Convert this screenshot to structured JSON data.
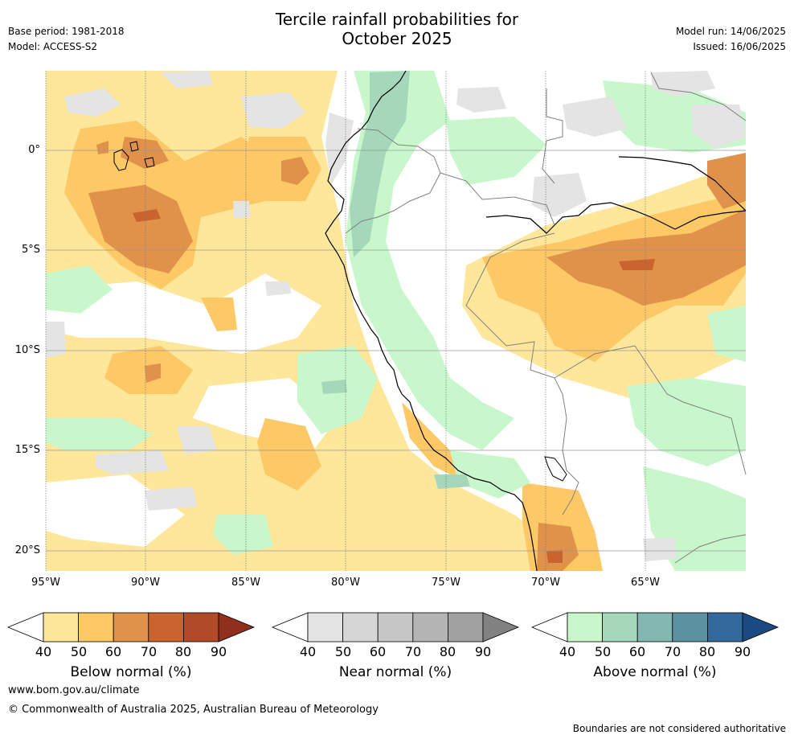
{
  "title_line1": "Tercile rainfall probabilities for",
  "title_line2": "October 2025",
  "meta": {
    "base_period": "Base period: 1981-2018",
    "model": "Model: ACCESS-S2",
    "model_run": "Model run: 14/06/2025",
    "issued": "Issued: 16/06/2025"
  },
  "axes": {
    "x_ticks": [
      "95°W",
      "90°W",
      "85°W",
      "80°W",
      "75°W",
      "70°W",
      "65°W"
    ],
    "y_ticks": [
      "0°",
      "5°S",
      "10°S",
      "15°S",
      "20°S"
    ]
  },
  "colorbars": [
    {
      "title": "Below normal (%)",
      "ticks": [
        "40",
        "50",
        "60",
        "70",
        "80",
        "90"
      ],
      "colors": [
        "#ffffff",
        "#fee79b",
        "#fdc866",
        "#e0914a",
        "#c9642e",
        "#b04a28",
        "#8f2f1c"
      ]
    },
    {
      "title": "Near normal (%)",
      "ticks": [
        "40",
        "50",
        "60",
        "70",
        "80",
        "90"
      ],
      "colors": [
        "#ffffff",
        "#e4e4e4",
        "#d6d6d6",
        "#c6c6c6",
        "#b4b4b4",
        "#a1a1a1",
        "#828282"
      ]
    },
    {
      "title": "Above normal (%)",
      "ticks": [
        "40",
        "50",
        "60",
        "70",
        "80",
        "90"
      ],
      "colors": [
        "#ffffff",
        "#c8f7cc",
        "#a5d8ba",
        "#82b8b1",
        "#5c929f",
        "#336a9b",
        "#1a4a82"
      ]
    }
  ],
  "footer": {
    "url": "www.bom.gov.au/climate",
    "copyright": "© Commonwealth of Australia 2025, Australian Bureau of Meteorology",
    "note": "Boundaries are not considered authoritative"
  }
}
